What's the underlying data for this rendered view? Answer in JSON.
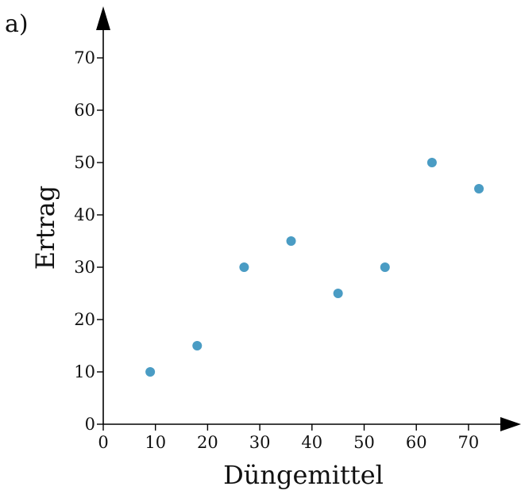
{
  "panel_label": "a)",
  "chart_data": {
    "type": "scatter",
    "xlabel": "Düngemittel",
    "ylabel": "Ertrag",
    "xlim": [
      0,
      78
    ],
    "ylim": [
      0,
      77
    ],
    "x_ticks": [
      0,
      10,
      20,
      30,
      40,
      50,
      60,
      70
    ],
    "y_ticks": [
      0,
      10,
      20,
      30,
      40,
      50,
      60,
      70
    ],
    "grid": false,
    "points": [
      {
        "x": 9,
        "y": 10
      },
      {
        "x": 18,
        "y": 15
      },
      {
        "x": 27,
        "y": 30
      },
      {
        "x": 36,
        "y": 35
      },
      {
        "x": 45,
        "y": 25
      },
      {
        "x": 54,
        "y": 30
      },
      {
        "x": 63,
        "y": 50
      },
      {
        "x": 72,
        "y": 45
      }
    ],
    "colors": {
      "points": "#4a9cc4",
      "axes": "#000000"
    }
  }
}
